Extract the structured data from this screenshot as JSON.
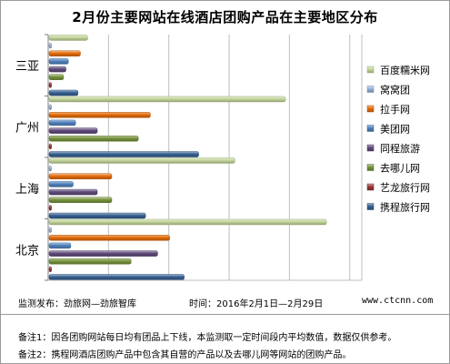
{
  "title": "2月份主要网站在线酒店团购产品在主要地区分布",
  "chart_data": {
    "type": "bar",
    "orientation": "horizontal",
    "categories": [
      "三亚",
      "广州",
      "上海",
      "北京"
    ],
    "series": [
      {
        "name": "百度糯米网",
        "color": "#c4d79b",
        "values": [
          16,
          98,
          77,
          115
        ]
      },
      {
        "name": "窝窝团",
        "color": "#95b3d7",
        "values": [
          1,
          1,
          1,
          1
        ]
      },
      {
        "name": "拉手网",
        "color": "#e46c0a",
        "values": [
          13,
          42,
          26,
          50
        ]
      },
      {
        "name": "美团网",
        "color": "#4f81bd",
        "values": [
          8,
          11,
          10,
          9
        ]
      },
      {
        "name": "同程旅游",
        "color": "#604a7b",
        "values": [
          7,
          20,
          20,
          45
        ]
      },
      {
        "name": "去哪儿网",
        "color": "#77933c",
        "values": [
          6,
          37,
          26,
          34
        ]
      },
      {
        "name": "艺龙旅行网",
        "color": "#953735",
        "values": [
          1,
          1,
          1,
          1
        ]
      },
      {
        "name": "携程旅行网",
        "color": "#366092",
        "values": [
          12,
          62,
          40,
          56
        ]
      }
    ],
    "xlim": [
      0,
      130
    ],
    "grid": true,
    "legend": "right"
  },
  "footer": {
    "source": "监测发布：劲旅网—劲旅智库",
    "time": "时间：2016年2月1日—2月29日",
    "url": "www.ctcnn.com"
  },
  "notes": [
    "备注1：因各团购网站每日均有团品上下线，本监测取一定时间段内平均数值，数据仅供参考。",
    "备注2：携程网酒店团购产品中包含其自营的产品以及去哪儿网等网站的团购产品。"
  ]
}
